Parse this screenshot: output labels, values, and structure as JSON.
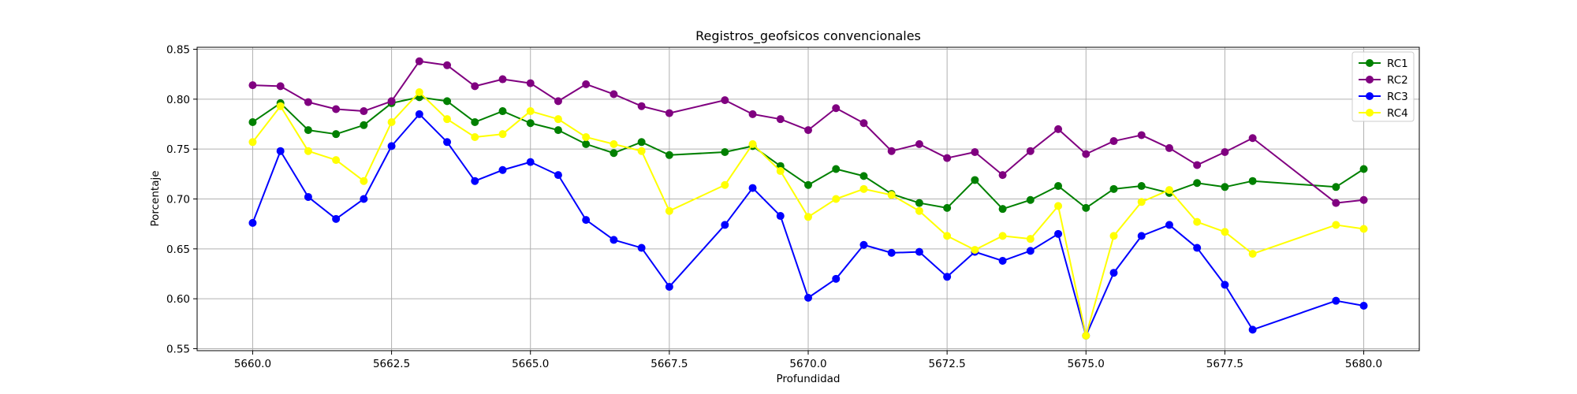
{
  "chart_data": {
    "type": "line",
    "title": "Registros_geofsicos convencionales",
    "xlabel": "Profundidad",
    "ylabel": "Porcentaje",
    "xlim": [
      5659,
      5681
    ],
    "ylim": [
      0.548,
      0.852
    ],
    "xticks": [
      5660.0,
      5662.5,
      5665.0,
      5667.5,
      5670.0,
      5672.5,
      5675.0,
      5677.5,
      5680.0
    ],
    "xtick_labels": [
      "5660.0",
      "5662.5",
      "5665.0",
      "5667.5",
      "5670.0",
      "5672.5",
      "5675.0",
      "5677.5",
      "5680.0"
    ],
    "yticks": [
      0.55,
      0.6,
      0.65,
      0.7,
      0.75,
      0.8,
      0.85
    ],
    "ytick_labels": [
      "0.55",
      "0.60",
      "0.65",
      "0.70",
      "0.75",
      "0.80",
      "0.85"
    ],
    "grid": true,
    "legend_position": "top-right",
    "series": [
      {
        "name": "RC1",
        "color": "#008000",
        "points": [
          [
            5660.0,
            0.777
          ],
          [
            5660.5,
            0.796
          ],
          [
            5661.0,
            0.769
          ],
          [
            5661.5,
            0.765
          ],
          [
            5662.0,
            0.774
          ],
          [
            5662.5,
            0.796
          ],
          [
            5663.0,
            0.802
          ],
          [
            5663.5,
            0.798
          ],
          [
            5664.0,
            0.777
          ],
          [
            5664.5,
            0.788
          ],
          [
            5665.0,
            0.776
          ],
          [
            5665.5,
            0.769
          ],
          [
            5666.0,
            0.755
          ],
          [
            5666.5,
            0.746
          ],
          [
            5667.0,
            0.757
          ],
          [
            5667.5,
            0.744
          ],
          [
            5668.5,
            0.747
          ],
          [
            5669.0,
            0.753
          ],
          [
            5669.5,
            0.733
          ],
          [
            5670.0,
            0.714
          ],
          [
            5670.5,
            0.73
          ],
          [
            5671.0,
            0.723
          ],
          [
            5671.5,
            0.705
          ],
          [
            5672.0,
            0.696
          ],
          [
            5672.5,
            0.691
          ],
          [
            5673.0,
            0.719
          ],
          [
            5673.5,
            0.69
          ],
          [
            5674.0,
            0.699
          ],
          [
            5674.5,
            0.713
          ],
          [
            5675.0,
            0.691
          ],
          [
            5675.5,
            0.71
          ],
          [
            5676.0,
            0.713
          ],
          [
            5676.5,
            0.706
          ],
          [
            5677.0,
            0.716
          ],
          [
            5677.5,
            0.712
          ],
          [
            5678.0,
            0.718
          ],
          [
            5679.5,
            0.712
          ],
          [
            5680.0,
            0.73
          ]
        ]
      },
      {
        "name": "RC2",
        "color": "#800080",
        "points": [
          [
            5660.0,
            0.814
          ],
          [
            5660.5,
            0.813
          ],
          [
            5661.0,
            0.797
          ],
          [
            5661.5,
            0.79
          ],
          [
            5662.0,
            0.788
          ],
          [
            5662.5,
            0.798
          ],
          [
            5663.0,
            0.838
          ],
          [
            5663.5,
            0.834
          ],
          [
            5664.0,
            0.813
          ],
          [
            5664.5,
            0.82
          ],
          [
            5665.0,
            0.816
          ],
          [
            5665.5,
            0.798
          ],
          [
            5666.0,
            0.815
          ],
          [
            5666.5,
            0.805
          ],
          [
            5667.0,
            0.793
          ],
          [
            5667.5,
            0.786
          ],
          [
            5668.5,
            0.799
          ],
          [
            5669.0,
            0.785
          ],
          [
            5669.5,
            0.78
          ],
          [
            5670.0,
            0.769
          ],
          [
            5670.5,
            0.791
          ],
          [
            5671.0,
            0.776
          ],
          [
            5671.5,
            0.748
          ],
          [
            5672.0,
            0.755
          ],
          [
            5672.5,
            0.741
          ],
          [
            5673.0,
            0.747
          ],
          [
            5673.5,
            0.724
          ],
          [
            5674.0,
            0.748
          ],
          [
            5674.5,
            0.77
          ],
          [
            5675.0,
            0.745
          ],
          [
            5675.5,
            0.758
          ],
          [
            5676.0,
            0.764
          ],
          [
            5676.5,
            0.751
          ],
          [
            5677.0,
            0.734
          ],
          [
            5677.5,
            0.747
          ],
          [
            5678.0,
            0.761
          ],
          [
            5679.5,
            0.696
          ],
          [
            5680.0,
            0.699
          ]
        ]
      },
      {
        "name": "RC3",
        "color": "#0000ff",
        "points": [
          [
            5660.0,
            0.676
          ],
          [
            5660.5,
            0.748
          ],
          [
            5661.0,
            0.702
          ],
          [
            5661.5,
            0.68
          ],
          [
            5662.0,
            0.7
          ],
          [
            5662.5,
            0.753
          ],
          [
            5663.0,
            0.785
          ],
          [
            5663.5,
            0.757
          ],
          [
            5664.0,
            0.718
          ],
          [
            5664.5,
            0.729
          ],
          [
            5665.0,
            0.737
          ],
          [
            5665.5,
            0.724
          ],
          [
            5666.0,
            0.679
          ],
          [
            5666.5,
            0.659
          ],
          [
            5667.0,
            0.651
          ],
          [
            5667.5,
            0.612
          ],
          [
            5668.5,
            0.674
          ],
          [
            5669.0,
            0.711
          ],
          [
            5669.5,
            0.683
          ],
          [
            5670.0,
            0.601
          ],
          [
            5670.5,
            0.62
          ],
          [
            5671.0,
            0.654
          ],
          [
            5671.5,
            0.646
          ],
          [
            5672.0,
            0.647
          ],
          [
            5672.5,
            0.622
          ],
          [
            5673.0,
            0.647
          ],
          [
            5673.5,
            0.638
          ],
          [
            5674.0,
            0.648
          ],
          [
            5674.5,
            0.665
          ],
          [
            5675.0,
            0.563
          ],
          [
            5675.5,
            0.626
          ],
          [
            5676.0,
            0.663
          ],
          [
            5676.5,
            0.674
          ],
          [
            5677.0,
            0.651
          ],
          [
            5677.5,
            0.614
          ],
          [
            5678.0,
            0.569
          ],
          [
            5679.5,
            0.598
          ],
          [
            5680.0,
            0.593
          ]
        ]
      },
      {
        "name": "RC4",
        "color": "#ffff00",
        "points": [
          [
            5660.0,
            0.757
          ],
          [
            5660.5,
            0.793
          ],
          [
            5661.0,
            0.748
          ],
          [
            5661.5,
            0.739
          ],
          [
            5662.0,
            0.718
          ],
          [
            5662.5,
            0.777
          ],
          [
            5663.0,
            0.807
          ],
          [
            5663.5,
            0.78
          ],
          [
            5664.0,
            0.762
          ],
          [
            5664.5,
            0.765
          ],
          [
            5665.0,
            0.788
          ],
          [
            5665.5,
            0.78
          ],
          [
            5666.0,
            0.762
          ],
          [
            5666.5,
            0.755
          ],
          [
            5667.0,
            0.748
          ],
          [
            5667.5,
            0.688
          ],
          [
            5668.5,
            0.714
          ],
          [
            5669.0,
            0.755
          ],
          [
            5669.5,
            0.728
          ],
          [
            5670.0,
            0.682
          ],
          [
            5670.5,
            0.7
          ],
          [
            5671.0,
            0.71
          ],
          [
            5671.5,
            0.704
          ],
          [
            5672.0,
            0.688
          ],
          [
            5672.5,
            0.663
          ],
          [
            5673.0,
            0.649
          ],
          [
            5673.5,
            0.663
          ],
          [
            5674.0,
            0.66
          ],
          [
            5674.5,
            0.693
          ],
          [
            5675.0,
            0.563
          ],
          [
            5675.5,
            0.663
          ],
          [
            5676.0,
            0.697
          ],
          [
            5676.5,
            0.709
          ],
          [
            5677.0,
            0.677
          ],
          [
            5677.5,
            0.667
          ],
          [
            5678.0,
            0.645
          ],
          [
            5679.5,
            0.674
          ],
          [
            5680.0,
            0.67
          ]
        ]
      }
    ]
  }
}
